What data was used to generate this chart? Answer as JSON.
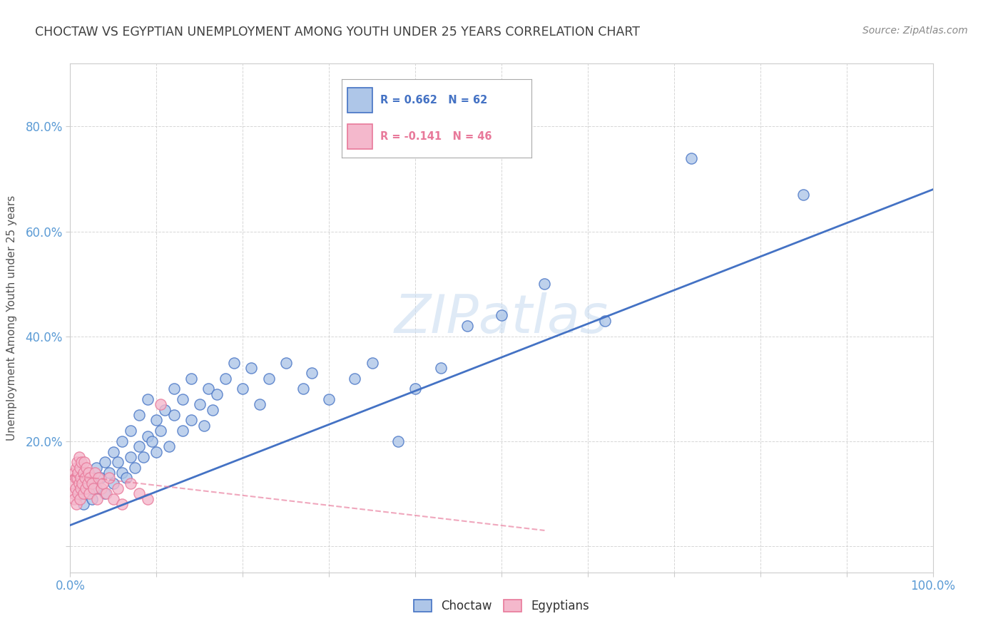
{
  "title": "CHOCTAW VS EGYPTIAN UNEMPLOYMENT AMONG YOUTH UNDER 25 YEARS CORRELATION CHART",
  "source": "Source: ZipAtlas.com",
  "ylabel": "Unemployment Among Youth under 25 years",
  "xlim": [
    0,
    1.0
  ],
  "ylim": [
    -0.05,
    0.92
  ],
  "x_ticks": [
    0.0,
    0.1,
    0.2,
    0.3,
    0.4,
    0.5,
    0.6,
    0.7,
    0.8,
    0.9,
    1.0
  ],
  "x_tick_labels": [
    "0.0%",
    "",
    "",
    "",
    "",
    "",
    "",
    "",
    "",
    "",
    "100.0%"
  ],
  "y_ticks": [
    0.0,
    0.2,
    0.4,
    0.6,
    0.8
  ],
  "y_tick_labels": [
    "",
    "20.0%",
    "40.0%",
    "60.0%",
    "80.0%"
  ],
  "choctaw_R": 0.662,
  "choctaw_N": 62,
  "egyptian_R": -0.141,
  "egyptian_N": 46,
  "choctaw_color": "#aec6e8",
  "choctaw_line_color": "#4472c4",
  "egyptian_color": "#f4b8cc",
  "egyptian_line_color": "#e8799a",
  "watermark": "ZIPatlas",
  "choctaw_points_x": [
    0.01,
    0.015,
    0.02,
    0.025,
    0.03,
    0.03,
    0.035,
    0.04,
    0.04,
    0.045,
    0.05,
    0.05,
    0.055,
    0.06,
    0.06,
    0.065,
    0.07,
    0.07,
    0.075,
    0.08,
    0.08,
    0.085,
    0.09,
    0.09,
    0.095,
    0.1,
    0.1,
    0.105,
    0.11,
    0.115,
    0.12,
    0.12,
    0.13,
    0.13,
    0.14,
    0.14,
    0.15,
    0.155,
    0.16,
    0.165,
    0.17,
    0.18,
    0.19,
    0.2,
    0.21,
    0.22,
    0.23,
    0.25,
    0.27,
    0.28,
    0.3,
    0.33,
    0.35,
    0.38,
    0.4,
    0.43,
    0.46,
    0.5,
    0.55,
    0.62,
    0.72,
    0.85
  ],
  "choctaw_points_y": [
    0.1,
    0.08,
    0.12,
    0.09,
    0.15,
    0.11,
    0.13,
    0.16,
    0.1,
    0.14,
    0.18,
    0.12,
    0.16,
    0.14,
    0.2,
    0.13,
    0.17,
    0.22,
    0.15,
    0.19,
    0.25,
    0.17,
    0.21,
    0.28,
    0.2,
    0.24,
    0.18,
    0.22,
    0.26,
    0.19,
    0.25,
    0.3,
    0.22,
    0.28,
    0.24,
    0.32,
    0.27,
    0.23,
    0.3,
    0.26,
    0.29,
    0.32,
    0.35,
    0.3,
    0.34,
    0.27,
    0.32,
    0.35,
    0.3,
    0.33,
    0.28,
    0.32,
    0.35,
    0.2,
    0.3,
    0.34,
    0.42,
    0.44,
    0.5,
    0.43,
    0.74,
    0.67
  ],
  "egyptian_points_x": [
    0.003,
    0.004,
    0.005,
    0.005,
    0.006,
    0.006,
    0.007,
    0.007,
    0.008,
    0.008,
    0.009,
    0.009,
    0.01,
    0.01,
    0.011,
    0.011,
    0.012,
    0.012,
    0.013,
    0.014,
    0.015,
    0.015,
    0.016,
    0.017,
    0.018,
    0.019,
    0.02,
    0.021,
    0.022,
    0.023,
    0.025,
    0.027,
    0.029,
    0.031,
    0.033,
    0.036,
    0.038,
    0.042,
    0.045,
    0.05,
    0.055,
    0.06,
    0.07,
    0.08,
    0.09,
    0.105
  ],
  "egyptian_points_y": [
    0.12,
    0.1,
    0.14,
    0.09,
    0.13,
    0.11,
    0.15,
    0.08,
    0.13,
    0.16,
    0.1,
    0.14,
    0.12,
    0.17,
    0.09,
    0.15,
    0.13,
    0.11,
    0.16,
    0.12,
    0.14,
    0.1,
    0.16,
    0.13,
    0.11,
    0.15,
    0.12,
    0.14,
    0.1,
    0.13,
    0.12,
    0.11,
    0.14,
    0.09,
    0.13,
    0.11,
    0.12,
    0.1,
    0.13,
    0.09,
    0.11,
    0.08,
    0.12,
    0.1,
    0.09,
    0.27
  ],
  "choctaw_line_x": [
    0.0,
    1.0
  ],
  "choctaw_line_y": [
    0.04,
    0.68
  ],
  "egyptian_line_x": [
    0.0,
    0.55
  ],
  "egyptian_line_y": [
    0.135,
    0.03
  ],
  "background_color": "#ffffff",
  "grid_color": "#cccccc",
  "title_color": "#404040",
  "tick_color": "#5b9bd5",
  "axis_label_color": "#555555"
}
